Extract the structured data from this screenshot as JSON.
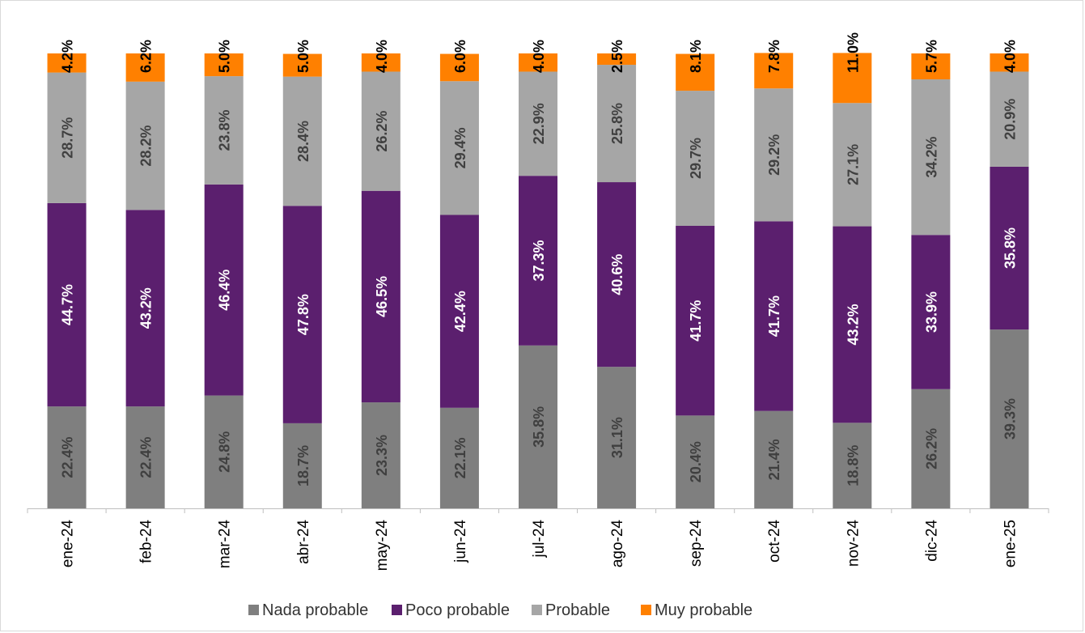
{
  "chart_data": {
    "type": "bar",
    "stacked": true,
    "categories": [
      "ene-24",
      "feb-24",
      "mar-24",
      "abr-24",
      "may-24",
      "jun-24",
      "jul-24",
      "ago-24",
      "sep-24",
      "oct-24",
      "nov-24",
      "dic-24",
      "ene-25"
    ],
    "series": [
      {
        "name": "Nada probable",
        "color": "#7f7f7f",
        "label_color": "#3f3f3f",
        "values": [
          22.4,
          22.4,
          24.8,
          18.7,
          23.3,
          22.1,
          35.8,
          31.1,
          20.4,
          21.4,
          18.8,
          26.2,
          39.3
        ],
        "labels": [
          "22.4%",
          "22.4%",
          "24.8%",
          "18.7%",
          "23.3%",
          "22.1%",
          "35.8%",
          "31.1%",
          "20.4%",
          "21.4%",
          "18.8%",
          "26.2%",
          "39.3%"
        ]
      },
      {
        "name": "Poco probable",
        "color": "#5b1f6e",
        "label_color": "#ffffff",
        "values": [
          44.7,
          43.2,
          46.4,
          47.8,
          46.5,
          42.4,
          37.3,
          40.6,
          41.7,
          41.7,
          43.2,
          33.9,
          35.8
        ],
        "labels": [
          "44.7%",
          "43.2%",
          "46.4%",
          "47.8%",
          "46.5%",
          "42.4%",
          "37.3%",
          "40.6%",
          "41.7%",
          "41.7%",
          "43.2%",
          "33.9%",
          "35.8%"
        ]
      },
      {
        "name": "Probable",
        "color": "#a6a6a6",
        "label_color": "#404040",
        "values": [
          28.7,
          28.2,
          23.8,
          28.4,
          26.2,
          29.4,
          22.9,
          25.8,
          29.7,
          29.2,
          27.1,
          34.2,
          20.9
        ],
        "labels": [
          "28.7%",
          "28.2%",
          "23.8%",
          "28.4%",
          "26.2%",
          "29.4%",
          "22.9%",
          "25.8%",
          "29.7%",
          "29.2%",
          "27.1%",
          "34.2%",
          "20.9%"
        ]
      },
      {
        "name": "Muy probable",
        "color": "#ff8000",
        "label_color": "#000000",
        "values": [
          4.2,
          6.2,
          5.0,
          5.0,
          4.0,
          6.0,
          4.0,
          2.5,
          8.1,
          7.8,
          11.0,
          5.7,
          4.0
        ],
        "labels": [
          "4.2%",
          "6.2%",
          "5.0%",
          "5.0%",
          "4.0%",
          "6.0%",
          "4.0%",
          "2.5%",
          "8.1%",
          "7.8%",
          "11.0%",
          "5.7%",
          "4.0%"
        ]
      }
    ],
    "ylim": [
      0,
      100
    ],
    "grid": false,
    "legend_position": "bottom",
    "label_orientation": "vertical"
  }
}
